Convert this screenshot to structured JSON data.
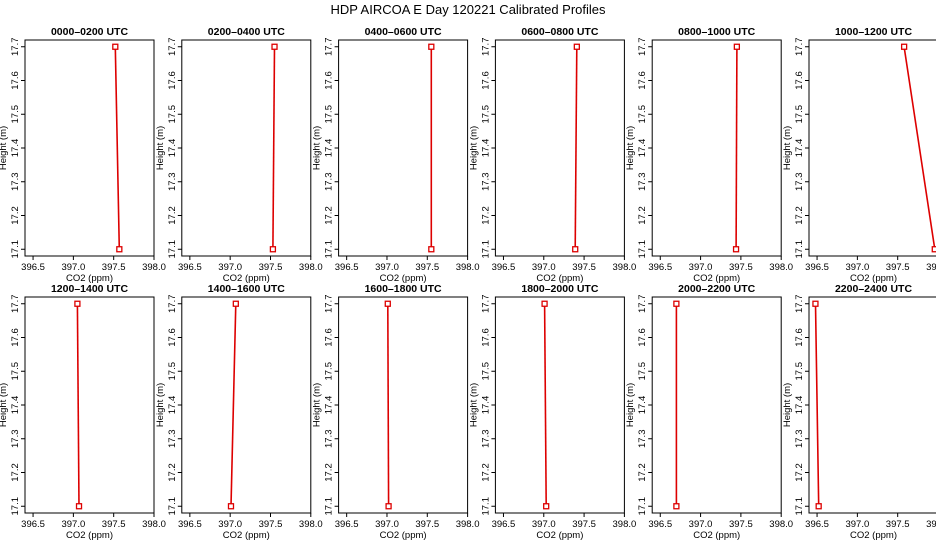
{
  "title": "HDP AIRCOA E  Day 120221  Calibrated Profiles",
  "chart_data": {
    "type": "line",
    "xlabel": "CO2 (ppm)",
    "ylabel": "Height (m)",
    "xlim": [
      396.4,
      398.0
    ],
    "ylim": [
      17.08,
      17.72
    ],
    "xticks": [
      "396.5",
      "397.0",
      "397.5",
      "398.0"
    ],
    "yticks": [
      "17.1",
      "17.2",
      "17.3",
      "17.4",
      "17.5",
      "17.6",
      "17.7"
    ],
    "line_color": "#dd0000",
    "marker": "open-square",
    "panels": [
      {
        "title": "0000–0200 UTC",
        "points": [
          [
            397.52,
            17.7
          ],
          [
            397.57,
            17.1
          ]
        ]
      },
      {
        "title": "0200–0400 UTC",
        "points": [
          [
            397.55,
            17.7
          ],
          [
            397.53,
            17.1
          ]
        ]
      },
      {
        "title": "0400–0600 UTC",
        "points": [
          [
            397.55,
            17.7
          ],
          [
            397.55,
            17.1
          ]
        ]
      },
      {
        "title": "0600–0800 UTC",
        "points": [
          [
            397.41,
            17.7
          ],
          [
            397.39,
            17.1
          ]
        ]
      },
      {
        "title": "0800–1000 UTC",
        "points": [
          [
            397.45,
            17.7
          ],
          [
            397.44,
            17.1
          ]
        ]
      },
      {
        "title": "1000–1200 UTC",
        "points": [
          [
            397.58,
            17.7
          ],
          [
            397.96,
            17.1
          ]
        ]
      },
      {
        "title": "1200–1400 UTC",
        "points": [
          [
            397.05,
            17.7
          ],
          [
            397.07,
            17.1
          ]
        ]
      },
      {
        "title": "1400–1600 UTC",
        "points": [
          [
            397.07,
            17.7
          ],
          [
            397.01,
            17.1
          ]
        ]
      },
      {
        "title": "1600–1800 UTC",
        "points": [
          [
            397.01,
            17.7
          ],
          [
            397.02,
            17.1
          ]
        ]
      },
      {
        "title": "1800–2000 UTC",
        "points": [
          [
            397.01,
            17.7
          ],
          [
            397.03,
            17.1
          ]
        ]
      },
      {
        "title": "2000–2200 UTC",
        "points": [
          [
            396.7,
            17.7
          ],
          [
            396.7,
            17.1
          ]
        ]
      },
      {
        "title": "2200–2400 UTC",
        "points": [
          [
            396.48,
            17.7
          ],
          [
            396.52,
            17.1
          ]
        ]
      }
    ]
  }
}
